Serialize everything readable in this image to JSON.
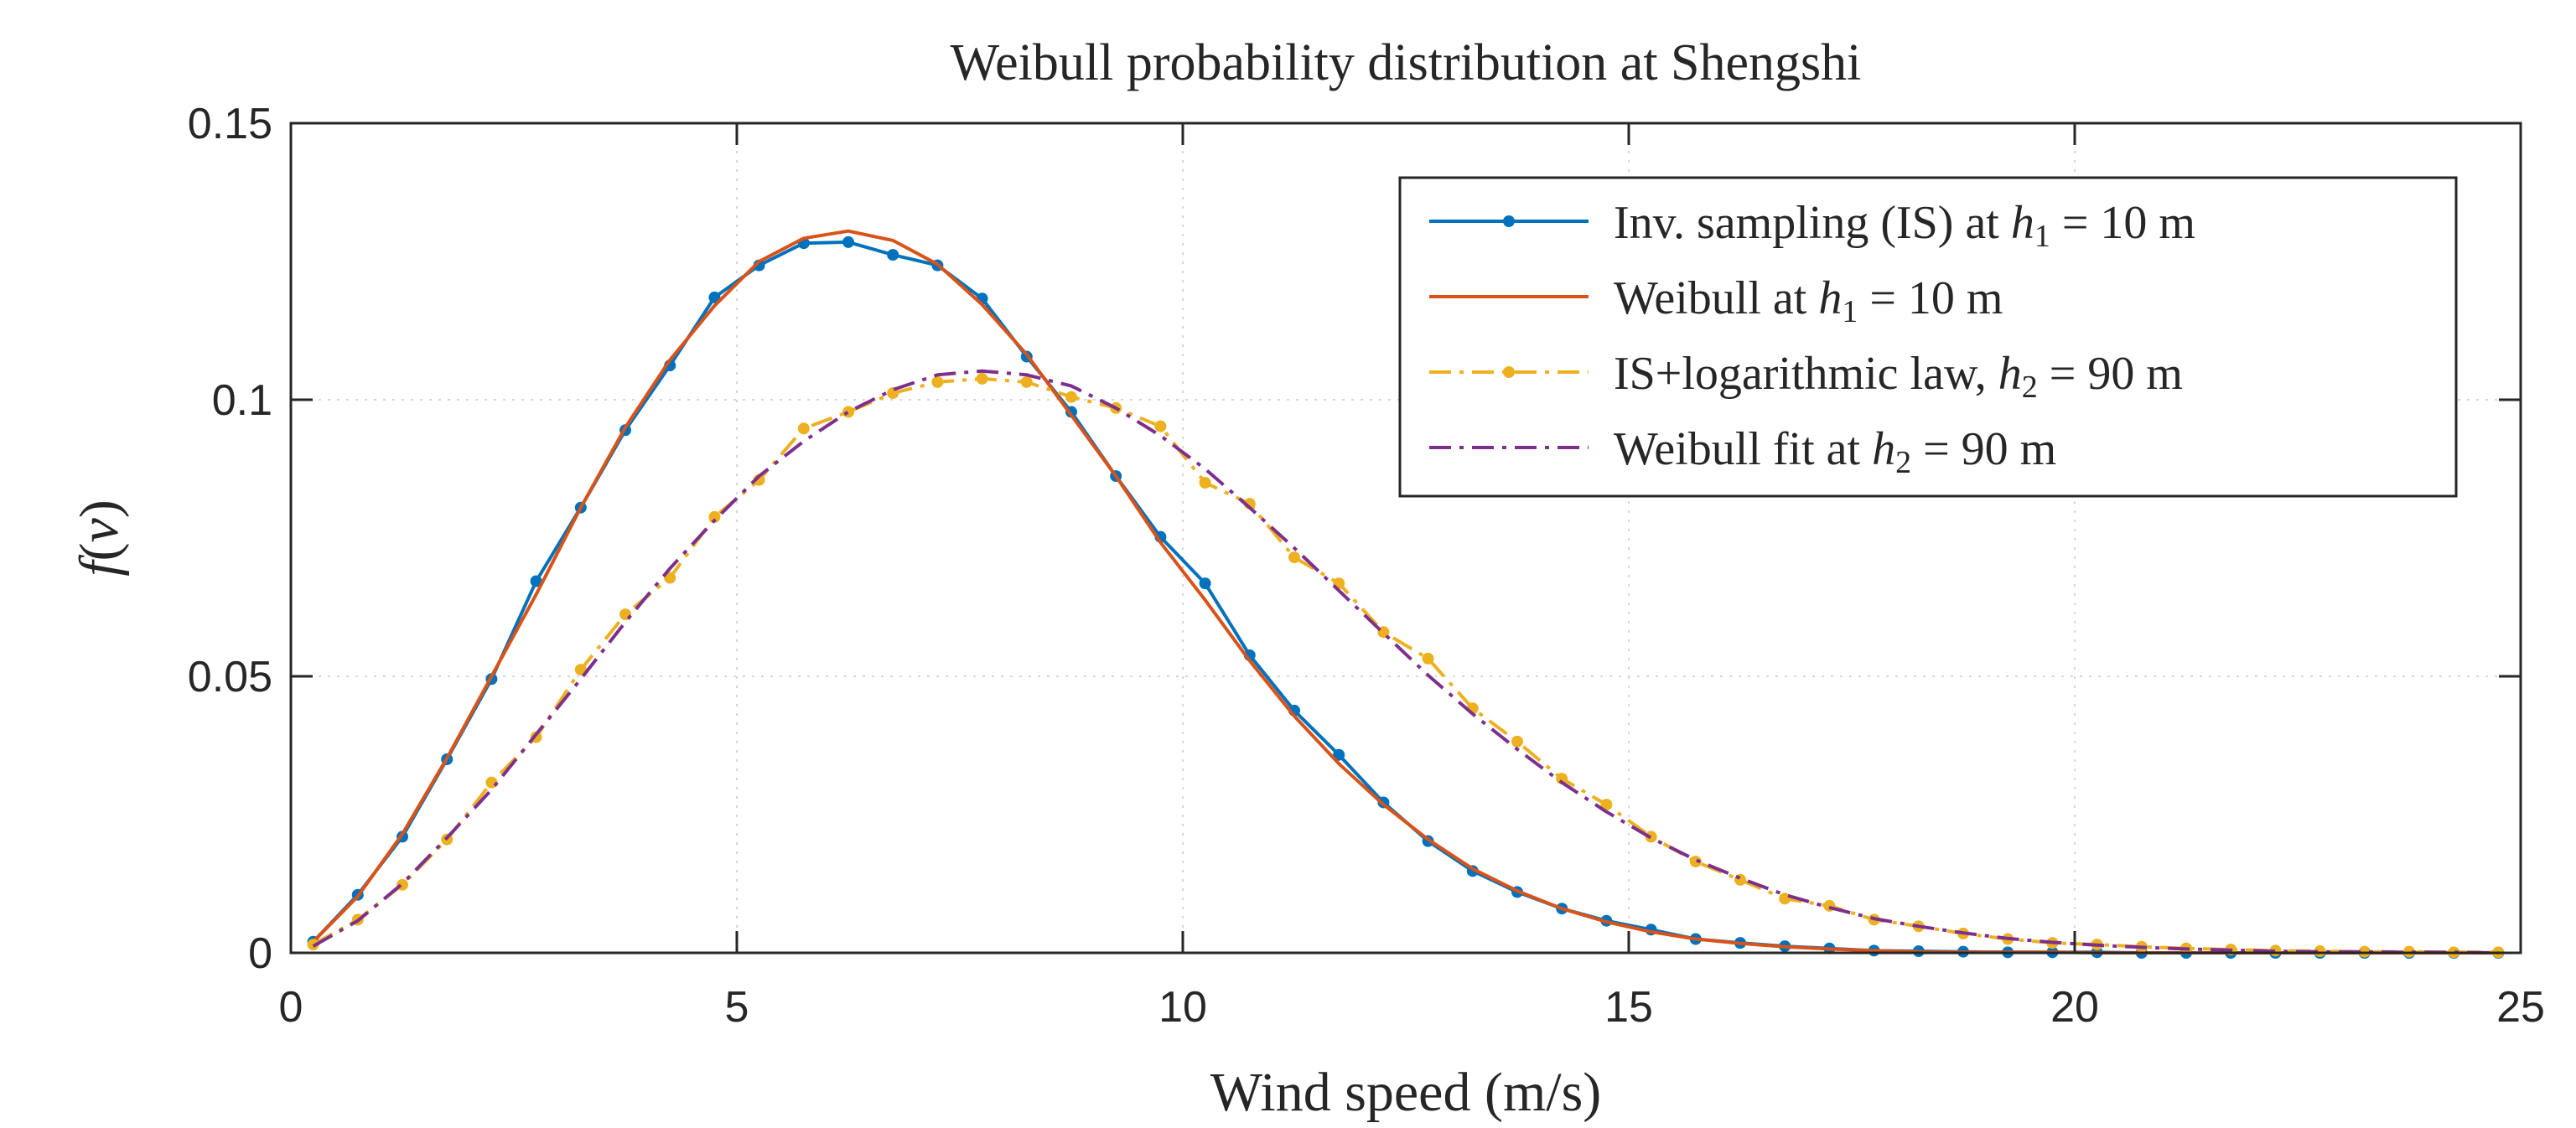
{
  "chart_data": {
    "type": "line",
    "title": "Weibull probability distribution at Shengshi",
    "xlabel": "Wind speed (m/s)",
    "ylabel": "f(v)",
    "xlim": [
      0,
      25
    ],
    "ylim": [
      0,
      0.15
    ],
    "xticks": [
      0,
      5,
      10,
      15,
      20,
      25
    ],
    "xtick_labels": [
      "0",
      "5",
      "10",
      "15",
      "20",
      "25"
    ],
    "yticks": [
      0,
      0.05,
      0.1,
      0.15
    ],
    "ytick_labels": [
      "0",
      "0.05",
      "0.1",
      "0.15"
    ],
    "grid": true,
    "legend_position": "top-right",
    "series": [
      {
        "name": "Inv. sampling (IS) at h₁ = 10 m",
        "legend": {
          "prefix": "Inv. sampling (IS) at ",
          "var": "h",
          "sub": "1",
          "suffix": " = 10 m"
        },
        "color": "#0072BD",
        "style": "solid-markers",
        "x": [
          0.25,
          0.75,
          1.25,
          1.75,
          2.25,
          2.75,
          3.25,
          3.75,
          4.25,
          4.75,
          5.25,
          5.75,
          6.25,
          6.75,
          7.25,
          7.75,
          8.25,
          8.75,
          9.25,
          9.75,
          10.25,
          10.75,
          11.25,
          11.75,
          12.25,
          12.75,
          13.25,
          13.75,
          14.25,
          14.75,
          15.25,
          15.75,
          16.25,
          16.75,
          17.25,
          17.75,
          18.25,
          18.75,
          19.25,
          19.75,
          20.25,
          20.75,
          21.25,
          21.75,
          22.25,
          22.75,
          23.25,
          23.75,
          24.25,
          24.75
        ],
        "y": [
          0.002,
          0.0105,
          0.021,
          0.035,
          0.0495,
          0.0672,
          0.0805,
          0.0945,
          0.1062,
          0.1185,
          0.1243,
          0.1283,
          0.1285,
          0.1262,
          0.1243,
          0.1183,
          0.1078,
          0.0978,
          0.0862,
          0.0752,
          0.0668,
          0.0538,
          0.0438,
          0.0358,
          0.0272,
          0.0202,
          0.0148,
          0.011,
          0.008,
          0.0058,
          0.0042,
          0.0025,
          0.0018,
          0.0012,
          0.0008,
          0.0004,
          0.0003,
          0.0002,
          0.0001,
          0.0001,
          0.0001,
          0,
          0,
          0,
          0,
          0,
          0,
          0,
          0,
          0
        ]
      },
      {
        "name": "Weibull at h₁ = 10 m",
        "legend": {
          "prefix": "Weibull at ",
          "var": "h",
          "sub": "1",
          "suffix": " = 10 m"
        },
        "color": "#D95319",
        "style": "solid",
        "x": [
          0.25,
          0.75,
          1.25,
          1.75,
          2.25,
          2.75,
          3.25,
          3.75,
          4.25,
          4.75,
          5.25,
          5.75,
          6.25,
          6.75,
          7.25,
          7.75,
          8.25,
          8.75,
          9.25,
          9.75,
          10.25,
          10.75,
          11.25,
          11.75,
          12.25,
          12.75,
          13.25,
          13.75,
          14.25,
          14.75,
          15.25,
          15.75,
          16.25,
          16.75,
          17.25,
          17.75,
          18.25,
          18.75,
          19.25,
          19.75,
          20.25,
          20.75,
          21.25,
          21.75,
          22.25,
          22.75,
          23.25,
          23.75,
          24.25,
          24.75
        ],
        "y": [
          0.002,
          0.0102,
          0.0215,
          0.0352,
          0.05,
          0.0648,
          0.0805,
          0.095,
          0.1072,
          0.117,
          0.125,
          0.1292,
          0.1305,
          0.1288,
          0.1245,
          0.1172,
          0.1082,
          0.0972,
          0.0862,
          0.0742,
          0.0638,
          0.0528,
          0.0428,
          0.0342,
          0.0268,
          0.0205,
          0.0152,
          0.0112,
          0.008,
          0.0056,
          0.0038,
          0.0025,
          0.0017,
          0.0011,
          0.0007,
          0.0004,
          0.0002,
          0.0001,
          0.0001,
          0.0001,
          0,
          0,
          0,
          0,
          0,
          0,
          0,
          0,
          0,
          0
        ]
      },
      {
        "name": "IS+logarithmic law, h₂ = 90 m",
        "legend": {
          "prefix": "IS+logarithmic law, ",
          "var": "h",
          "sub": "2",
          "suffix": " = 90 m"
        },
        "color": "#EDB120",
        "style": "dashdot-markers",
        "x": [
          0.25,
          0.75,
          1.25,
          1.75,
          2.25,
          2.75,
          3.25,
          3.75,
          4.25,
          4.75,
          5.25,
          5.75,
          6.25,
          6.75,
          7.25,
          7.75,
          8.25,
          8.75,
          9.25,
          9.75,
          10.25,
          10.75,
          11.25,
          11.75,
          12.25,
          12.75,
          13.25,
          13.75,
          14.25,
          14.75,
          15.25,
          15.75,
          16.25,
          16.75,
          17.25,
          17.75,
          18.25,
          18.75,
          19.25,
          19.75,
          20.25,
          20.75,
          21.25,
          21.75,
          22.25,
          22.75,
          23.25,
          23.75,
          24.25,
          24.75
        ],
        "y": [
          0.0015,
          0.006,
          0.0123,
          0.0205,
          0.0308,
          0.039,
          0.0512,
          0.0612,
          0.0678,
          0.0788,
          0.0855,
          0.0948,
          0.0978,
          0.1012,
          0.1032,
          0.1038,
          0.1032,
          0.1005,
          0.0985,
          0.0952,
          0.085,
          0.0812,
          0.0715,
          0.0668,
          0.058,
          0.0532,
          0.0442,
          0.0382,
          0.0315,
          0.0268,
          0.021,
          0.0165,
          0.0132,
          0.0098,
          0.0085,
          0.006,
          0.0048,
          0.0035,
          0.0025,
          0.0018,
          0.0015,
          0.0011,
          0.0008,
          0.0006,
          0.0004,
          0.0003,
          0.0002,
          0.0002,
          0.0001,
          0.0001
        ]
      },
      {
        "name": "Weibull fit at h₂ = 90 m",
        "legend": {
          "prefix": "Weibull fit at ",
          "var": "h",
          "sub": "2",
          "suffix": " = 90 m"
        },
        "color": "#7E2F8E",
        "style": "dashdot",
        "x": [
          0.25,
          0.75,
          1.25,
          1.75,
          2.25,
          2.75,
          3.25,
          3.75,
          4.25,
          4.75,
          5.25,
          5.75,
          6.25,
          6.75,
          7.25,
          7.75,
          8.25,
          8.75,
          9.25,
          9.75,
          10.25,
          10.75,
          11.25,
          11.75,
          12.25,
          12.75,
          13.25,
          13.75,
          14.25,
          14.75,
          15.25,
          15.75,
          16.25,
          16.75,
          17.25,
          17.75,
          18.25,
          18.75,
          19.25,
          19.75,
          20.25,
          20.75,
          21.25,
          21.75,
          22.25,
          22.75,
          23.25,
          23.75,
          24.25,
          24.75
        ],
        "y": [
          0.0012,
          0.0058,
          0.0125,
          0.0208,
          0.0295,
          0.0395,
          0.0495,
          0.0598,
          0.0695,
          0.0782,
          0.0862,
          0.0925,
          0.0978,
          0.1018,
          0.1045,
          0.1052,
          0.1045,
          0.1025,
          0.0985,
          0.0935,
          0.0875,
          0.0805,
          0.0732,
          0.0655,
          0.0578,
          0.0502,
          0.0432,
          0.0368,
          0.0308,
          0.0255,
          0.0208,
          0.0168,
          0.0135,
          0.0105,
          0.0082,
          0.0062,
          0.0048,
          0.0036,
          0.0026,
          0.0019,
          0.0014,
          0.001,
          0.0007,
          0.0005,
          0.0003,
          0.0002,
          0.0002,
          0.0001,
          0.0001,
          0
        ]
      }
    ]
  }
}
